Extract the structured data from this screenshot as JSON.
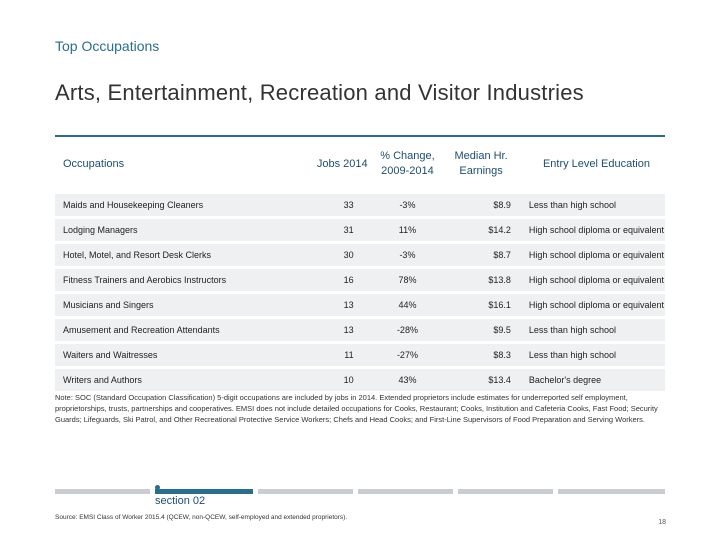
{
  "header": {
    "kicker": "Top Occupations",
    "title": "Arts, Entertainment, Recreation and Visitor Industries"
  },
  "table": {
    "columns": {
      "occupation": "Occupations",
      "jobs": "Jobs 2014",
      "change_line1": "% Change,",
      "change_line2": "2009-2014",
      "earnings_line1": "Median Hr.",
      "earnings_line2": "Earnings",
      "education": "Entry Level Education"
    },
    "rows": [
      {
        "occupation": "Maids and Housekeeping Cleaners",
        "jobs": "33",
        "change": "-3%",
        "earnings": "$8.9",
        "education": "Less than high school"
      },
      {
        "occupation": "Lodging Managers",
        "jobs": "31",
        "change": "11%",
        "earnings": "$14.2",
        "education": "High school diploma or equivalent"
      },
      {
        "occupation": "Hotel, Motel, and Resort Desk Clerks",
        "jobs": "30",
        "change": "-3%",
        "earnings": "$8.7",
        "education": "High school diploma or equivalent"
      },
      {
        "occupation": "Fitness Trainers and Aerobics Instructors",
        "jobs": "16",
        "change": "78%",
        "earnings": "$13.8",
        "education": "High school diploma or equivalent"
      },
      {
        "occupation": "Musicians and Singers",
        "jobs": "13",
        "change": "44%",
        "earnings": "$16.1",
        "education": "High school diploma or equivalent"
      },
      {
        "occupation": "Amusement and Recreation Attendants",
        "jobs": "13",
        "change": "-28%",
        "earnings": "$9.5",
        "education": "Less than high school"
      },
      {
        "occupation": "Waiters and Waitresses",
        "jobs": "11",
        "change": "-27%",
        "earnings": "$8.3",
        "education": "Less than high school"
      },
      {
        "occupation": "Writers and Authors",
        "jobs": "10",
        "change": "43%",
        "earnings": "$13.4",
        "education": "Bachelor's degree"
      }
    ]
  },
  "note": "Note: SOC (Standard Occupation Classification) 5-digit occupations are included by jobs in 2014. Extended proprietors include estimates for underreported self employment, proprietorships, trusts, partnerships and cooperatives. EMSI does not include detailed occupations for Cooks, Restaurant; Cooks, Institution and Cafeteria Cooks, Fast Food; Security Guards; Lifeguards, Ski Patrol, and Other Recreational Protective Service Workers; Chefs and Head Cooks; and First-Line Supervisors of Food Preparation and Serving Workers.",
  "footer": {
    "section_label": "section 02",
    "source": "Source: EMSI Class of Worker 2015.4 (QCEW, non-QCEW, self-employed and extended proprietors).",
    "page_number": "18"
  },
  "colors": {
    "accent": "#2b6e8a",
    "row_fill": "#eef0f2",
    "inactive_bar": "#c9cdd1"
  }
}
